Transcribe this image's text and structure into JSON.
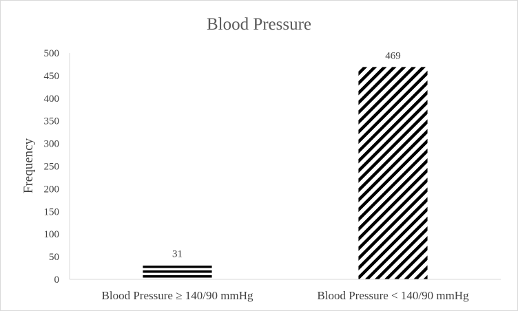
{
  "chart_data": {
    "type": "bar",
    "title": "Blood Pressure",
    "xlabel": "",
    "ylabel": "Frequency",
    "categories": [
      "Blood Pressure ≥ 140/90 mmHg",
      "Blood Pressure < 140/90 mmHg"
    ],
    "values": [
      31,
      469
    ],
    "data_labels": [
      "31",
      "469"
    ],
    "bar_patterns": [
      "horizontal-stripes",
      "diagonal-stripes"
    ],
    "ylim": [
      0,
      500
    ],
    "yticks": [
      0,
      50,
      100,
      150,
      200,
      250,
      300,
      350,
      400,
      450,
      500
    ],
    "grid": false,
    "legend": "none",
    "colors": {
      "bar": "#000000",
      "axis": "#d9d9d9",
      "text": "#404040",
      "title": "#595959"
    }
  }
}
